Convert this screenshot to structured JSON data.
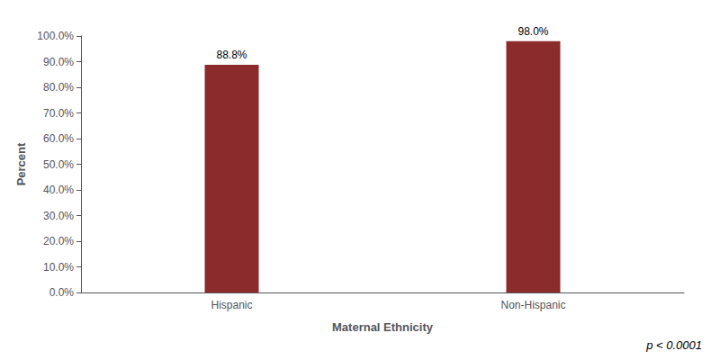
{
  "chart_data": {
    "type": "bar",
    "categories": [
      "Hispanic",
      "Non-Hispanic"
    ],
    "values": [
      88.8,
      98.0
    ],
    "value_labels": [
      "88.8%",
      "98.0%"
    ],
    "data_labels": true,
    "color": "#8B2B2B",
    "xlabel": "Maternal Ethnicity",
    "ylabel": "Percent",
    "ylim": [
      0,
      100
    ],
    "yticks": [
      {
        "value": 0,
        "label": "0.0%"
      },
      {
        "value": 10,
        "label": "10.0%"
      },
      {
        "value": 20,
        "label": "20.0%"
      },
      {
        "value": 30,
        "label": "30.0%"
      },
      {
        "value": 40,
        "label": "40.0%"
      },
      {
        "value": 50,
        "label": "50.0%"
      },
      {
        "value": 60,
        "label": "60.0%"
      },
      {
        "value": 70,
        "label": "70.0%"
      },
      {
        "value": 80,
        "label": "80.0%"
      },
      {
        "value": 90,
        "label": "90.0%"
      },
      {
        "value": 100,
        "label": "100.0%"
      }
    ],
    "annotation": "p < 0.0001",
    "grid": false
  }
}
